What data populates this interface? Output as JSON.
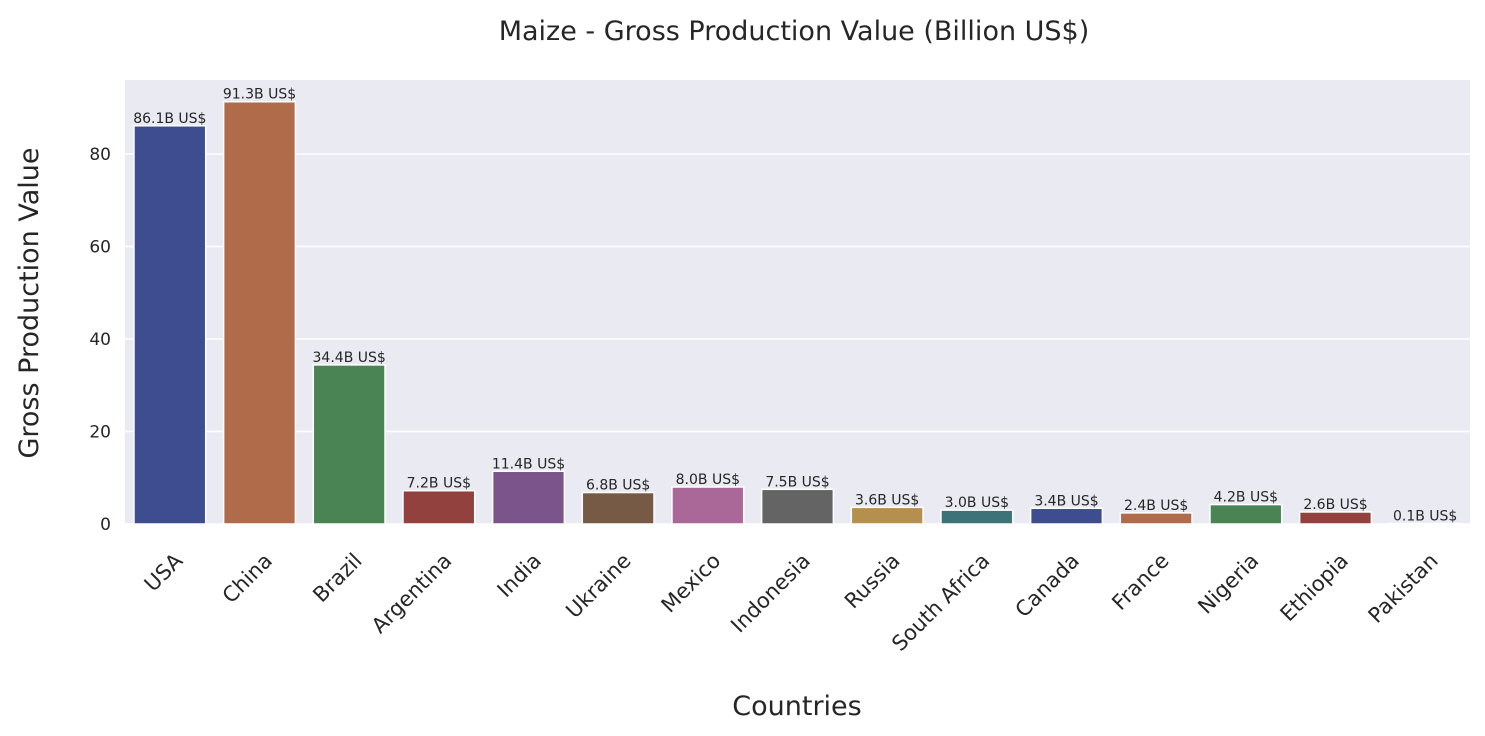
{
  "chart_data": {
    "type": "bar",
    "title": "Maize - Gross Production Value (Billion US$)",
    "xlabel": "Countries",
    "ylabel": "Gross Production Value",
    "ylim": [
      0,
      96
    ],
    "yticks": [
      0,
      20,
      40,
      60,
      80
    ],
    "grid": true,
    "categories": [
      "USA",
      "China",
      "Brazil",
      "Argentina",
      "India",
      "Ukraine",
      "Mexico",
      "Indonesia",
      "Russia",
      "South Africa",
      "Canada",
      "France",
      "Nigeria",
      "Ethiopia",
      "Pakistan"
    ],
    "values": [
      86.1,
      91.3,
      34.4,
      7.2,
      11.4,
      6.8,
      8.0,
      7.5,
      3.6,
      3.0,
      3.4,
      2.4,
      4.2,
      2.6,
      0.1
    ],
    "data_labels": [
      "86.1B US$",
      "91.3B US$",
      "34.4B US$",
      "7.2B US$",
      "11.4B US$",
      "6.8B US$",
      "8.0B US$",
      "7.5B US$",
      "3.6B US$",
      "3.0B US$",
      "3.4B US$",
      "2.4B US$",
      "4.2B US$",
      "2.6B US$",
      "0.1B US$"
    ],
    "colors": [
      "#3d4d8f",
      "#b06b4b",
      "#4a8454",
      "#93413f",
      "#7a548a",
      "#765a45",
      "#aa6898",
      "#646464",
      "#b48f4e",
      "#3d7278",
      "#3d4d8f",
      "#b06b4b",
      "#4a8454",
      "#93413f",
      "#7a548a"
    ],
    "plot_background": "#eaeaf2",
    "grid_color": "#ffffff"
  }
}
